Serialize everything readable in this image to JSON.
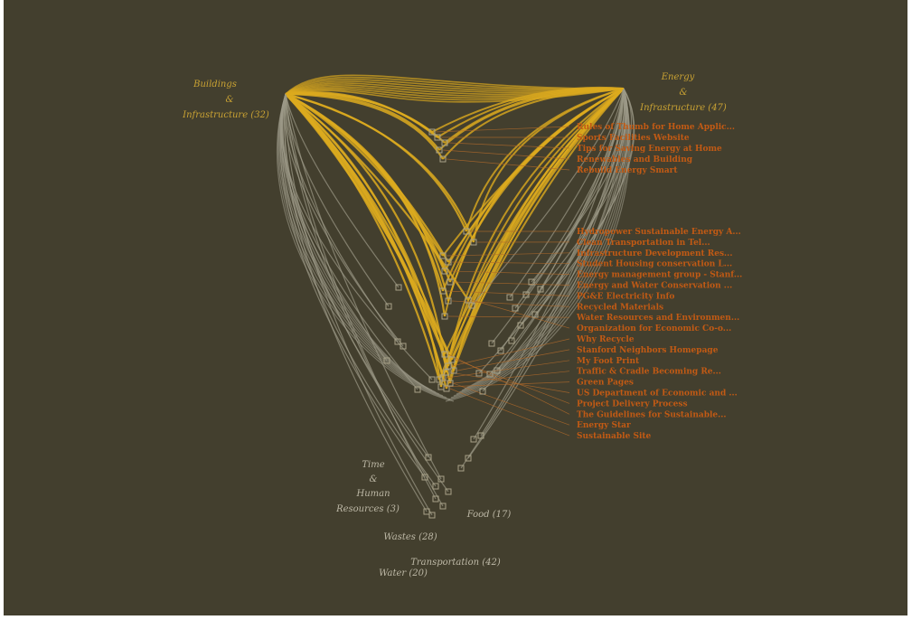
{
  "categories": {
    "buildings": [
      "Buildings",
      "&",
      "Infrastructure (32)"
    ],
    "energy": [
      "Energy",
      "&",
      "Infrastructure (47)"
    ],
    "time": [
      "Time",
      "&",
      "Human",
      "Resources (3)"
    ],
    "food": "Food (17)",
    "wastes": "Wastes (28)",
    "transportation": "Transportation (42)",
    "water": "Water (20)"
  },
  "leaves_top": [
    "Rules of Thumb for Home Applic...",
    "Sports Facilities Website",
    "Tips for Saving Energy at Home",
    "Renewables and Building",
    "Rebuild Energy Smart"
  ],
  "leaves_main": [
    "Hydropower Sustainable Energy A...",
    "Clean Transportation in Tel...",
    "Infrastructure Development Res...",
    "Student Housing conservation L...",
    "Energy management group - Stanf...",
    "Energy and Water Conservation ...",
    "PG&E Electricity Info",
    "Recycled Materials",
    "Water Resources and Environmen...",
    "Organization for Economic Co-o...",
    "Why Recycle",
    "Stanford Neighbors Homepage",
    "My Foot Print",
    "Traffic & Cradle Becoming Re...",
    "Green Pages",
    "US Department of Economic and ...",
    "Project Delivery Process",
    "The Guidelines for Sustainable...",
    "Energy Star",
    "Sustainable Site"
  ],
  "colors": {
    "background": "#433f2e",
    "gold_edge": "#dcaa1e",
    "grey_edge": "#9d9a88",
    "leaf_text": "#c25a14",
    "gold_label": "#c9a233",
    "grey_label": "#bdb8a6"
  }
}
